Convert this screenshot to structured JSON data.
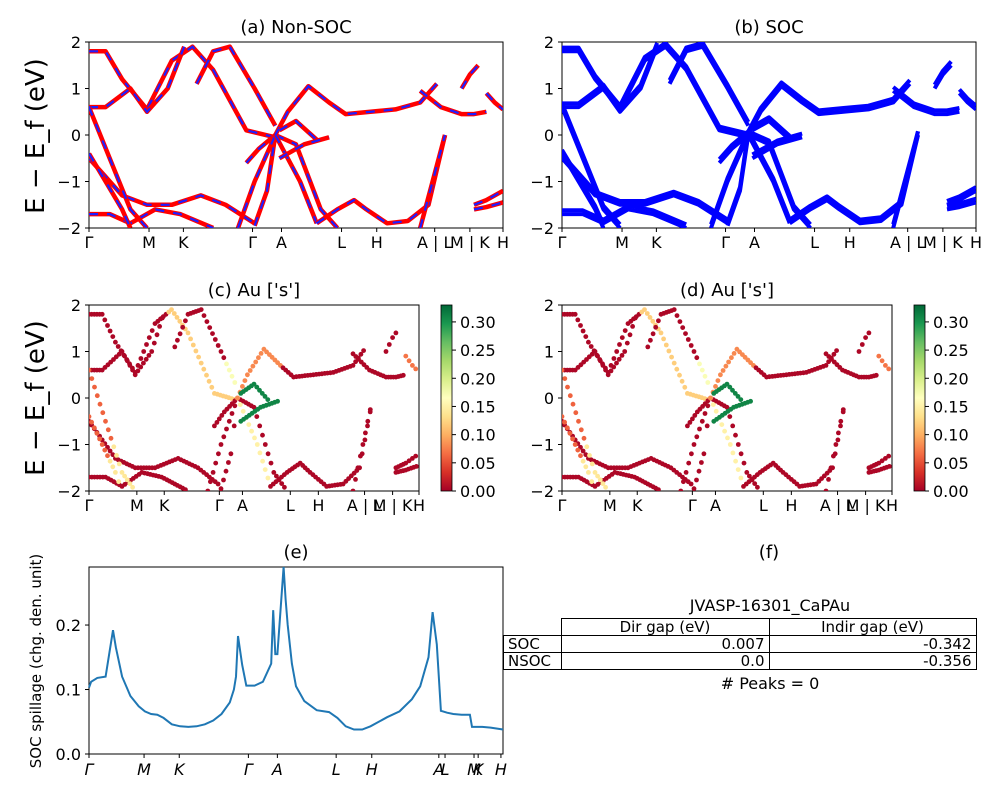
{
  "panels": {
    "a": {
      "title": "(a) Non-SOC"
    },
    "b": {
      "title": "(b) SOC"
    },
    "c": {
      "title": "(c)  Au ['s']"
    },
    "d": {
      "title": "(d) Au ['s']"
    },
    "e": {
      "title": "(e)"
    },
    "f": {
      "title": "(f)"
    }
  },
  "band_axes": {
    "ylabel": "E − E_f (eV)",
    "ylim": [
      -2,
      2
    ],
    "yticks": [
      "2",
      "1",
      "0",
      "−1",
      "−2"
    ],
    "kpath_ab": [
      "Γ",
      "M",
      "K",
      "Γ",
      "A",
      "L",
      "H",
      "A | L",
      "M | K",
      "H"
    ],
    "kpath_cd": [
      "Γ",
      "M",
      "K",
      "Γ",
      "A",
      "L",
      "H",
      "A | L",
      "M | K",
      "H"
    ]
  },
  "colorbar": {
    "range": [
      0.0,
      0.33
    ],
    "ticks": [
      "0.30",
      "0.25",
      "0.20",
      "0.15",
      "0.10",
      "0.05",
      "0.00"
    ],
    "colormap": [
      "#a50026",
      "#d73027",
      "#f46d43",
      "#fdae61",
      "#fee08b",
      "#ffffbf",
      "#d9ef8b",
      "#a6d96a",
      "#66bd63",
      "#1a9850",
      "#006837"
    ]
  },
  "colors": {
    "nonsoc_solid": "#ff0000",
    "nonsoc_dash": "#1f1fff",
    "soc": "#0000ff",
    "spillage": "#1f77b4"
  },
  "chart_data": [
    {
      "panel": "e",
      "type": "line",
      "ylabel": "SOC spillage (chg. den. unit)",
      "ylim": [
        0,
        0.29
      ],
      "yticks": [
        "0.0",
        "0.1",
        "0.2"
      ],
      "xticks": [
        "Γ",
        "M",
        "K",
        "Γ",
        "A",
        "L",
        "H",
        "A",
        "L",
        "M",
        "K",
        "H"
      ],
      "x": [
        0,
        0.005,
        0.02,
        0.04,
        0.05,
        0.058,
        0.065,
        0.08,
        0.1,
        0.12,
        0.135,
        0.15,
        0.165,
        0.18,
        0.2,
        0.22,
        0.24,
        0.26,
        0.28,
        0.3,
        0.32,
        0.34,
        0.35,
        0.355,
        0.36,
        0.37,
        0.38,
        0.4,
        0.42,
        0.44,
        0.445,
        0.45,
        0.455,
        0.47,
        0.475,
        0.48,
        0.49,
        0.5,
        0.52,
        0.55,
        0.58,
        0.6,
        0.62,
        0.64,
        0.66,
        0.68,
        0.7,
        0.72,
        0.75,
        0.78,
        0.8,
        0.82,
        0.83,
        0.84,
        0.845,
        0.85,
        0.855,
        0.865,
        0.88,
        0.9,
        0.92,
        0.925,
        0.93,
        0.95,
        0.97,
        0.99,
        1.0
      ],
      "values": [
        0.103,
        0.112,
        0.118,
        0.12,
        0.16,
        0.192,
        0.165,
        0.12,
        0.09,
        0.074,
        0.066,
        0.062,
        0.061,
        0.056,
        0.046,
        0.043,
        0.042,
        0.043,
        0.046,
        0.052,
        0.062,
        0.08,
        0.1,
        0.12,
        0.183,
        0.138,
        0.106,
        0.106,
        0.112,
        0.14,
        0.223,
        0.155,
        0.155,
        0.29,
        0.24,
        0.2,
        0.14,
        0.105,
        0.082,
        0.068,
        0.065,
        0.056,
        0.043,
        0.038,
        0.038,
        0.043,
        0.05,
        0.057,
        0.066,
        0.085,
        0.105,
        0.15,
        0.22,
        0.17,
        0.12,
        0.067,
        0.066,
        0.064,
        0.062,
        0.061,
        0.061,
        0.042,
        0.042,
        0.042,
        0.041,
        0.039,
        0.038
      ]
    },
    {
      "panel": "f",
      "type": "table",
      "title": "JVASP-16301_CaPAu",
      "columns": [
        "",
        "Dir gap (eV)",
        "Indir gap (eV)"
      ],
      "rows": [
        [
          "SOC",
          "0.007",
          "-0.342"
        ],
        [
          "NSOC",
          "0.0",
          "-0.356"
        ]
      ],
      "footer": "# Peaks = 0"
    }
  ]
}
